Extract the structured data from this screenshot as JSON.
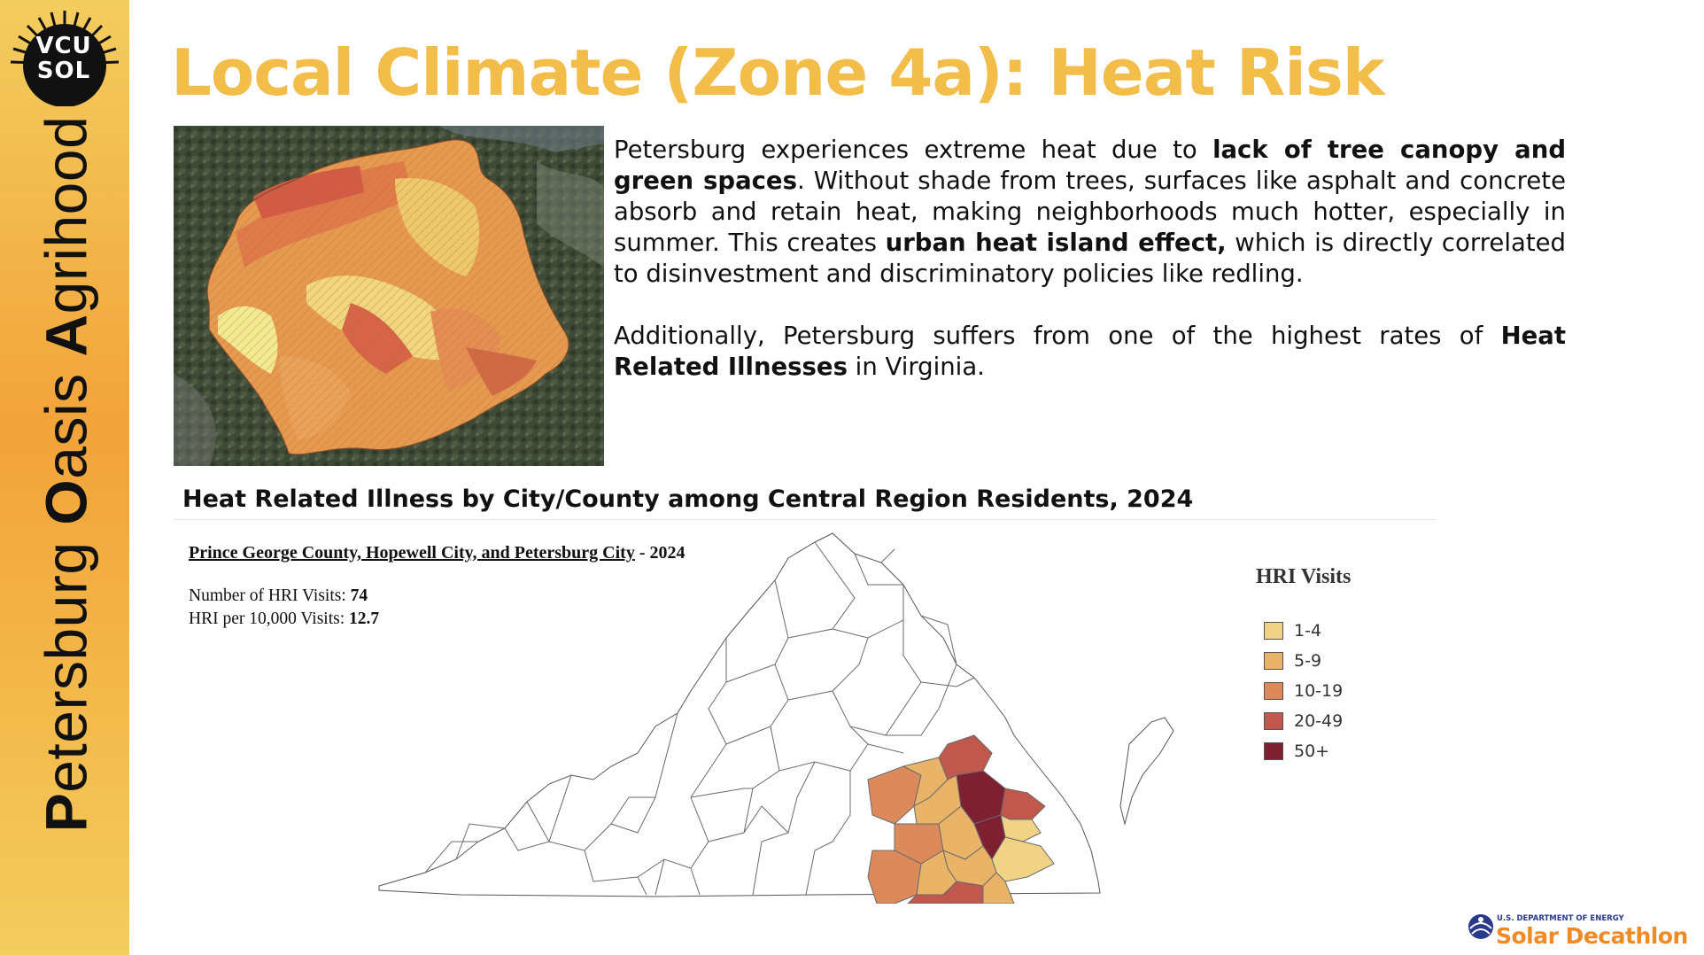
{
  "sidebar": {
    "logo_text": "VCU\nSOL",
    "vertical_title": [
      {
        "bold": "P",
        "rest": "etersburg "
      },
      {
        "bold": "O",
        "rest": "asis "
      },
      {
        "bold": "A",
        "rest": "grihood"
      }
    ]
  },
  "slide": {
    "title": "Local Climate (Zone 4a): Heat Risk",
    "paragraph1": [
      {
        "text": "Petersburg experiences extreme heat due to ",
        "bold": false
      },
      {
        "text": "lack of tree canopy and green spaces",
        "bold": true
      },
      {
        "text": ". Without shade from trees, surfaces like asphalt and concrete absorb and retain heat, making neighborhoods much hotter, especially in summer. This creates ",
        "bold": false
      },
      {
        "text": "urban heat island effect,",
        "bold": true
      },
      {
        "text": " which is directly correlated to disinvestment and discriminatory policies like redling.",
        "bold": false
      }
    ],
    "paragraph2": [
      {
        "text": "Additionally, Petersburg suffers from one of the highest rates of ",
        "bold": false
      },
      {
        "text": "Heat Related Illnesses",
        "bold": true
      },
      {
        "text": " in Virginia.",
        "bold": false
      }
    ]
  },
  "chart": {
    "title": "Heat Related Illness by City/County among Central Region Residents, 2024",
    "selection_label": "Prince George County, Hopewell City, and Petersburg City",
    "selection_suffix": " - 2024",
    "visits_label": "Number of HRI Visits: ",
    "visits_value": "74",
    "rate_label": "HRI per 10,000 Visits: ",
    "rate_value": "12.7",
    "legend_title": "HRI Visits",
    "legend": [
      {
        "label": "1-4",
        "color": "#f0d384"
      },
      {
        "label": "5-9",
        "color": "#e9b468"
      },
      {
        "label": "10-19",
        "color": "#dc8a5c"
      },
      {
        "label": "20-49",
        "color": "#c0584d"
      },
      {
        "label": "50+",
        "color": "#7e2032"
      }
    ]
  },
  "footer": {
    "agency": "U.S. DEPARTMENT OF ENERGY",
    "program": "Solar Decathlon"
  }
}
